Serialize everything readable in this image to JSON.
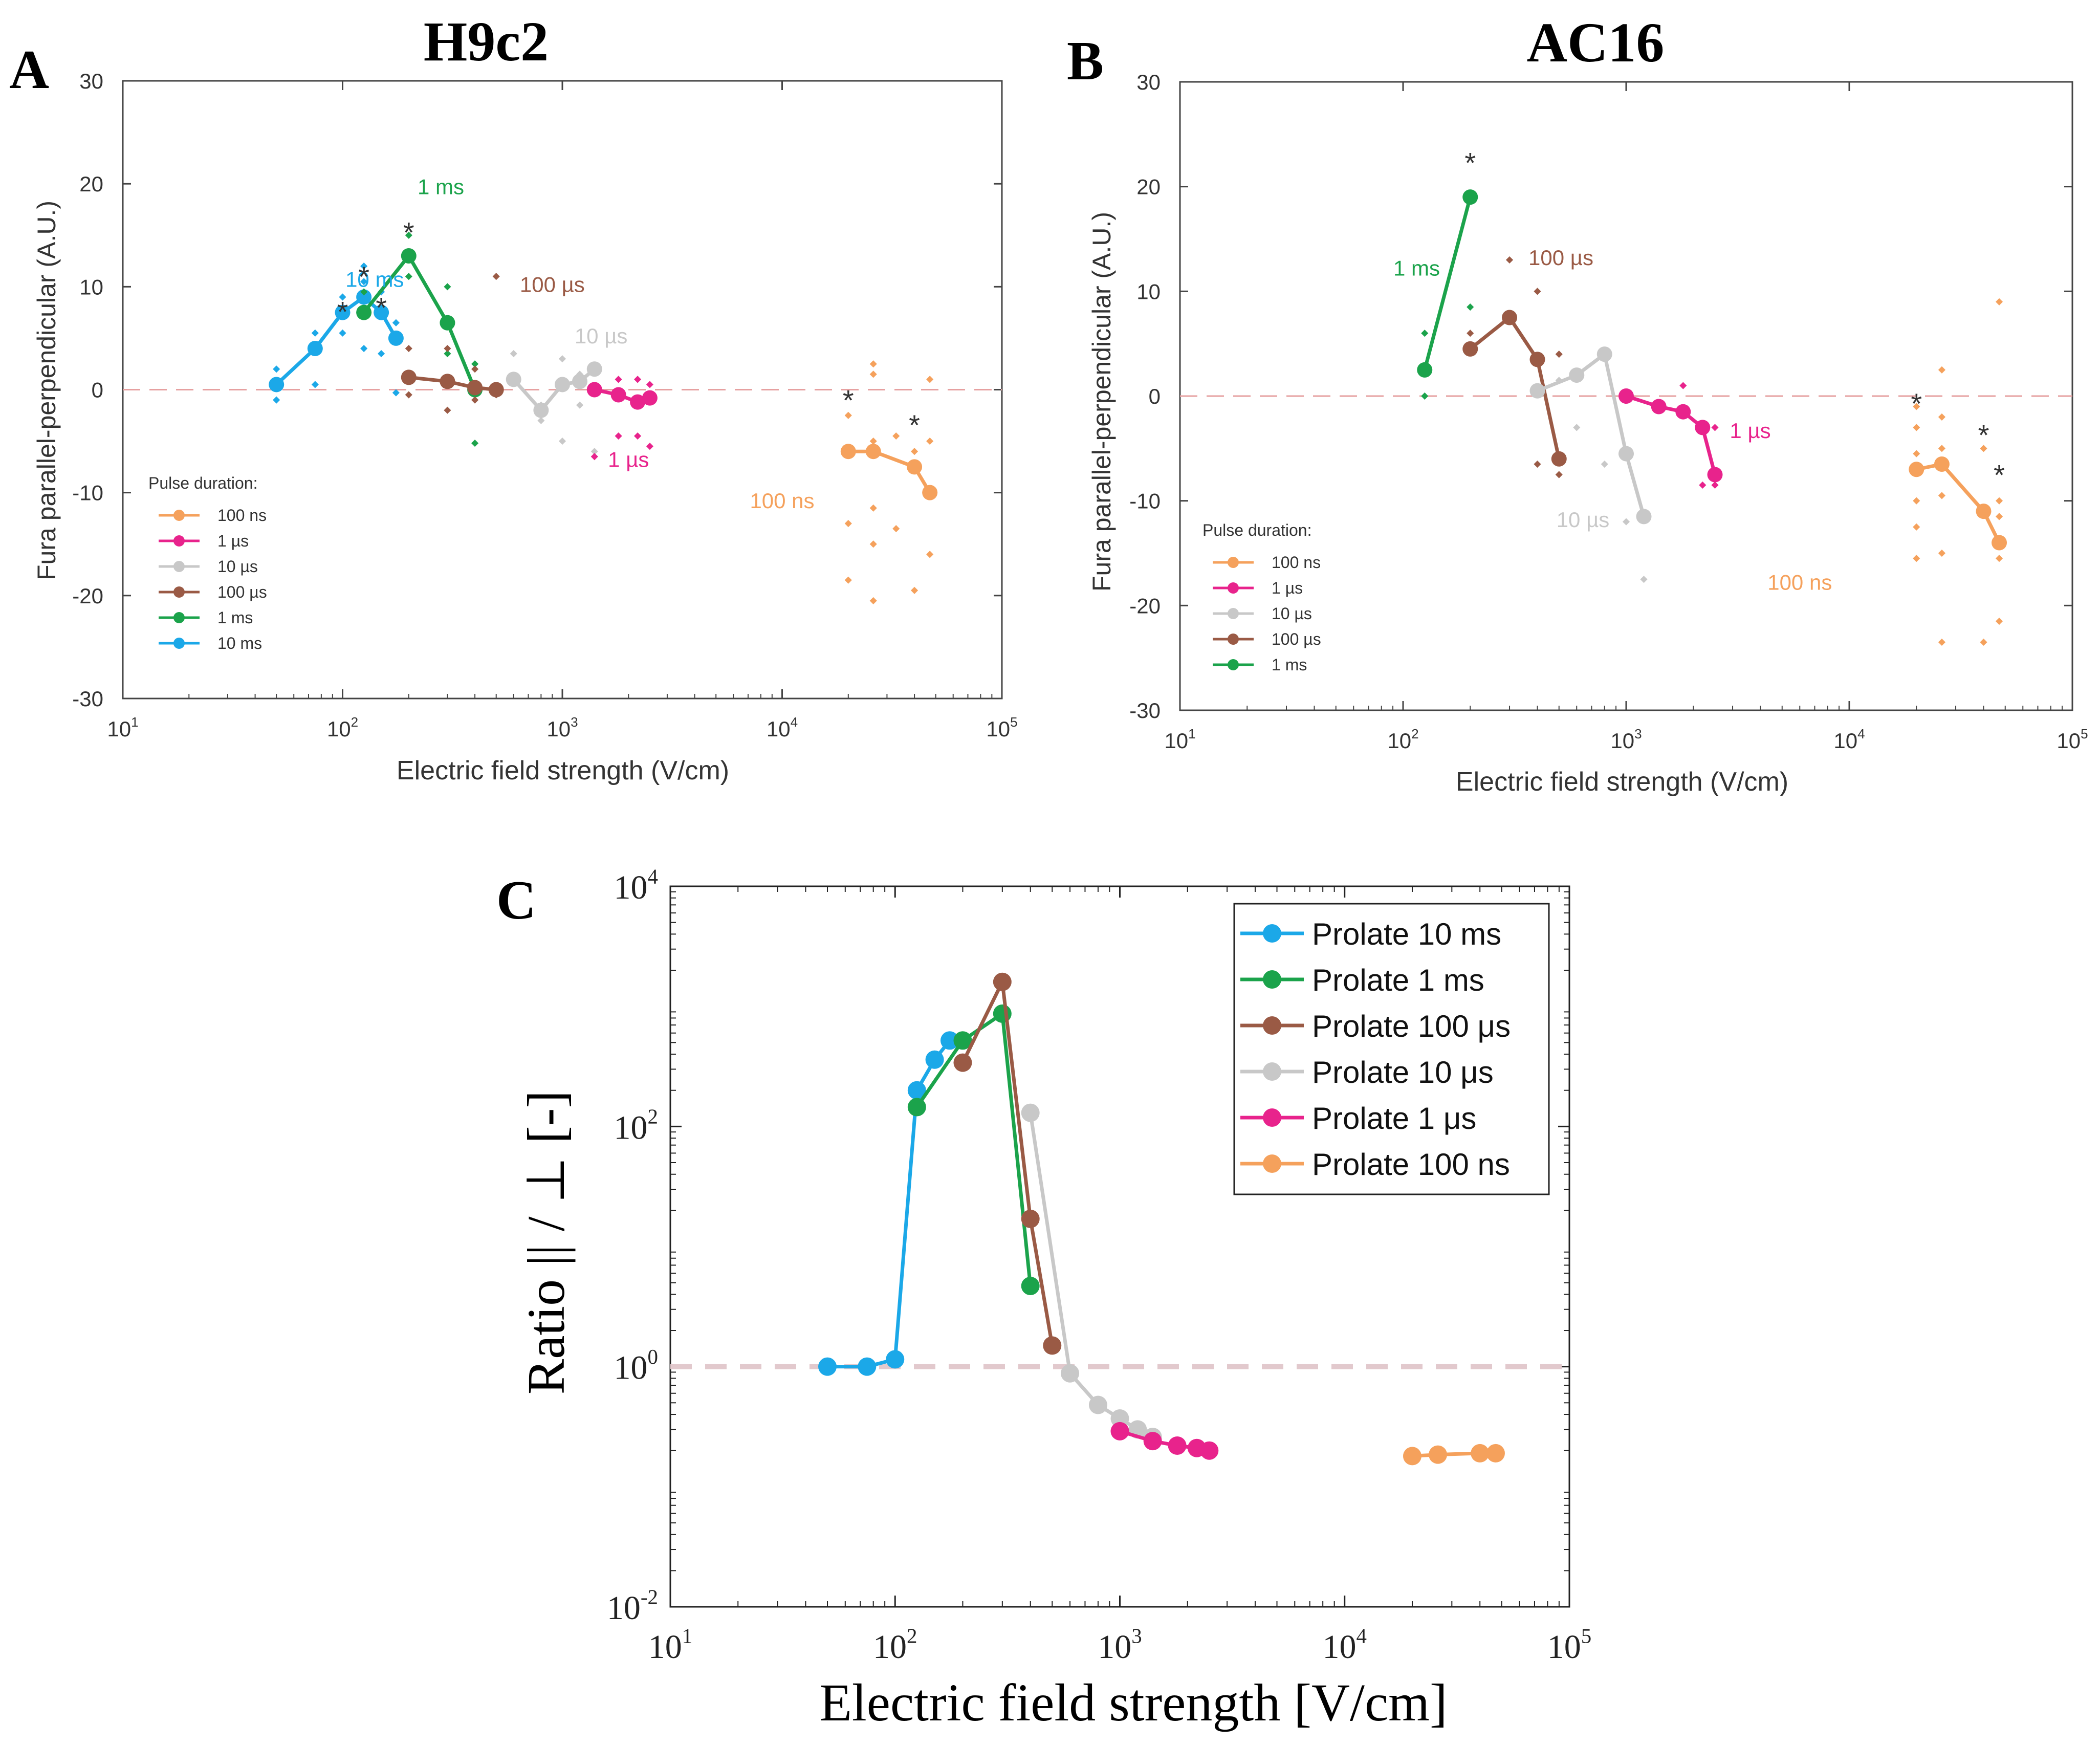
{
  "colors": {
    "ns100": "#F5A15C",
    "us1": "#E8238C",
    "us10": "#C8C8C8",
    "us100": "#9A5A45",
    "ms1": "#1BA34B",
    "ms10": "#1BA8E8",
    "zero_line": "#E6A0A0",
    "zero_line_c": "#E2C9CD",
    "star": "#333333"
  },
  "panels": {
    "A": {
      "label": "A",
      "title": "H9c2",
      "xlabel": "Electric field strength (V/cm)",
      "ylabel": "Fura parallel-perpendicular (A.U.)",
      "legend_title": "Pulse duration:"
    },
    "B": {
      "label": "B",
      "title": "AC16",
      "xlabel": "Electric field strength (V/cm)",
      "ylabel": "Fura parallel-perpendicular (A.U.)",
      "legend_title": "Pulse duration:"
    },
    "C": {
      "label": "C",
      "xlabel": "Electric field strength [V/cm]",
      "ylabel": "Ratio || / ⊥ [-]"
    }
  },
  "chart_data": [
    {
      "id": "A",
      "type": "line",
      "title": "H9c2",
      "xlabel": "Electric field strength (V/cm)",
      "ylabel": "Fura parallel-perpendicular (A.U.)",
      "xscale": "log",
      "xlim": [
        10,
        100000
      ],
      "ylim": [
        -30,
        30
      ],
      "yticks": [
        "30",
        "20",
        "10",
        "0",
        "-10",
        "-20",
        "-30"
      ],
      "xticks": [
        {
          "base": "10",
          "exp": "1"
        },
        {
          "base": "10",
          "exp": "2"
        },
        {
          "base": "10",
          "exp": "3"
        },
        {
          "base": "10",
          "exp": "4"
        },
        {
          "base": "10",
          "exp": "5"
        }
      ],
      "zero_line": true,
      "legend": {
        "title": "Pulse duration:",
        "position": "lower-left",
        "entries": [
          "100 ns",
          "1 µs",
          "10 µs",
          "100 µs",
          "1 ms",
          "10 ms"
        ]
      },
      "series": [
        {
          "name": "10 ms",
          "key": "ms10",
          "x": [
            50,
            75,
            100,
            125,
            150,
            175
          ],
          "y": [
            0.5,
            4,
            7.5,
            9,
            7.5,
            5
          ],
          "scatter": [
            [
              50,
              2
            ],
            [
              50,
              -1
            ],
            [
              75,
              5.5
            ],
            [
              75,
              0.5
            ],
            [
              100,
              9
            ],
            [
              100,
              5.5
            ],
            [
              125,
              12
            ],
            [
              125,
              10.5
            ],
            [
              125,
              4
            ],
            [
              150,
              9.5
            ],
            [
              150,
              3.5
            ],
            [
              175,
              6.5
            ],
            [
              175,
              -0.3
            ]
          ]
        },
        {
          "name": "1 ms",
          "key": "ms1",
          "x": [
            125,
            200,
            300,
            400
          ],
          "y": [
            7.5,
            13,
            6.5,
            0
          ],
          "scatter": [
            [
              125,
              9.5
            ],
            [
              200,
              15
            ],
            [
              200,
              11
            ],
            [
              300,
              10
            ],
            [
              300,
              3.5
            ],
            [
              400,
              2.5
            ],
            [
              400,
              -5.2
            ]
          ]
        },
        {
          "name": "100 µs",
          "key": "us100",
          "x": [
            200,
            300,
            400,
            500
          ],
          "y": [
            1.2,
            0.8,
            0.2,
            0
          ],
          "scatter": [
            [
              200,
              4
            ],
            [
              200,
              -0.5
            ],
            [
              300,
              4
            ],
            [
              300,
              -2
            ],
            [
              400,
              2
            ],
            [
              400,
              -1
            ],
            [
              500,
              11
            ],
            [
              500,
              -0.5
            ]
          ]
        },
        {
          "name": "10 µs",
          "key": "us10",
          "x": [
            600,
            800,
            1000,
            1200,
            1400
          ],
          "y": [
            1,
            -2,
            0.5,
            0.8,
            2
          ],
          "scatter": [
            [
              600,
              3.5
            ],
            [
              800,
              -1.5
            ],
            [
              800,
              -3
            ],
            [
              1000,
              3
            ],
            [
              1000,
              -5
            ],
            [
              1200,
              1.5
            ],
            [
              1200,
              -1.5
            ],
            [
              1400,
              -6
            ]
          ]
        },
        {
          "name": "1 µs",
          "key": "us1",
          "x": [
            1400,
            1800,
            2200,
            2500
          ],
          "y": [
            0,
            -0.5,
            -1.2,
            -0.8
          ],
          "scatter": [
            [
              1400,
              -6.5
            ],
            [
              1800,
              1
            ],
            [
              1800,
              -4.5
            ],
            [
              2200,
              1
            ],
            [
              2200,
              -4.5
            ],
            [
              2500,
              -5.5
            ],
            [
              2500,
              0.5
            ]
          ]
        },
        {
          "name": "100 ns",
          "key": "ns100",
          "x": [
            20000,
            26000,
            40000,
            47000
          ],
          "y": [
            -6,
            -6,
            -7.5,
            -10
          ],
          "scatter": [
            [
              20000,
              -2.5
            ],
            [
              20000,
              -13
            ],
            [
              20000,
              -18.5
            ],
            [
              26000,
              2.5
            ],
            [
              26000,
              1.5
            ],
            [
              26000,
              -5
            ],
            [
              26000,
              -11.5
            ],
            [
              26000,
              -15
            ],
            [
              26000,
              -20.5
            ],
            [
              33000,
              -4.5
            ],
            [
              33000,
              -13.5
            ],
            [
              40000,
              -6
            ],
            [
              40000,
              -19.5
            ],
            [
              47000,
              1
            ],
            [
              47000,
              -16
            ],
            [
              47000,
              -5
            ]
          ]
        }
      ],
      "annotations": [
        {
          "text": "10 ms",
          "key": "ms10",
          "at": [
            140,
            10
          ]
        },
        {
          "text": "1 ms",
          "key": "ms1",
          "at": [
            280,
            19
          ]
        },
        {
          "text": "100 µs",
          "key": "us100",
          "at": [
            900,
            9.5
          ]
        },
        {
          "text": "10 µs",
          "key": "us10",
          "at": [
            1500,
            4.5
          ]
        },
        {
          "text": "1 µs",
          "key": "us1",
          "at": [
            2000,
            -7.5
          ]
        },
        {
          "text": "100 ns",
          "key": "ns100",
          "at": [
            10000,
            -11.5
          ]
        }
      ],
      "stars": [
        [
          100,
          7.8
        ],
        [
          125,
          11.2
        ],
        [
          150,
          8.2
        ],
        [
          200,
          15.5
        ],
        [
          20000,
          -0.8
        ],
        [
          40000,
          -3.2
        ]
      ]
    },
    {
      "id": "B",
      "type": "line",
      "title": "AC16",
      "xlabel": "Electric field strength (V/cm)",
      "ylabel": "Fura parallel-perpendicular (A.U.)",
      "xscale": "log",
      "xlim": [
        10,
        100000
      ],
      "ylim": [
        -30,
        30
      ],
      "yticks": [
        "30",
        "20",
        "10",
        "0",
        "-10",
        "-20",
        "-30"
      ],
      "xticks": [
        {
          "base": "10",
          "exp": "1"
        },
        {
          "base": "10",
          "exp": "2"
        },
        {
          "base": "10",
          "exp": "3"
        },
        {
          "base": "10",
          "exp": "4"
        },
        {
          "base": "10",
          "exp": "5"
        }
      ],
      "zero_line": true,
      "legend": {
        "title": "Pulse duration:",
        "position": "lower-left",
        "entries": [
          "100 ns",
          "1 µs",
          "10 µs",
          "100 µs",
          "1 ms"
        ]
      },
      "series": [
        {
          "name": "1 ms",
          "key": "ms1",
          "x": [
            125,
            200
          ],
          "y": [
            2.5,
            19
          ],
          "scatter": [
            [
              125,
              6
            ],
            [
              125,
              0
            ],
            [
              200,
              8.5
            ]
          ]
        },
        {
          "name": "100 µs",
          "key": "us100",
          "x": [
            200,
            300,
            400,
            500
          ],
          "y": [
            4.5,
            7.5,
            3.5,
            -6
          ],
          "scatter": [
            [
              200,
              6
            ],
            [
              300,
              13
            ],
            [
              400,
              10
            ],
            [
              400,
              -6.5
            ],
            [
              500,
              4
            ],
            [
              500,
              -7.5
            ]
          ]
        },
        {
          "name": "10 µs",
          "key": "us10",
          "x": [
            400,
            600,
            800,
            1000,
            1200
          ],
          "y": [
            0.5,
            2,
            4,
            -5.5,
            -11.5
          ],
          "scatter": [
            [
              500,
              1.5
            ],
            [
              600,
              -3
            ],
            [
              800,
              -6.5
            ],
            [
              1000,
              -12
            ],
            [
              1200,
              -17.5
            ]
          ]
        },
        {
          "name": "1 µs",
          "key": "us1",
          "x": [
            1000,
            1400,
            1800,
            2200,
            2500
          ],
          "y": [
            0,
            -1,
            -1.5,
            -3,
            -7.5
          ],
          "scatter": [
            [
              1800,
              1
            ],
            [
              2200,
              -8.5
            ],
            [
              2500,
              -3
            ],
            [
              2500,
              -8.5
            ]
          ]
        },
        {
          "name": "100 ns",
          "key": "ns100",
          "x": [
            20000,
            26000,
            40000,
            47000
          ],
          "y": [
            -7,
            -6.5,
            -11,
            -14
          ],
          "scatter": [
            [
              20000,
              -1
            ],
            [
              20000,
              -3
            ],
            [
              20000,
              -5.5
            ],
            [
              20000,
              -10
            ],
            [
              20000,
              -12.5
            ],
            [
              20000,
              -15.5
            ],
            [
              26000,
              2.5
            ],
            [
              26000,
              -2
            ],
            [
              26000,
              -5
            ],
            [
              26000,
              -9.5
            ],
            [
              26000,
              -15
            ],
            [
              26000,
              -23.5
            ],
            [
              40000,
              -5
            ],
            [
              40000,
              -23.5
            ],
            [
              47000,
              9
            ],
            [
              47000,
              -10
            ],
            [
              47000,
              -11.5
            ],
            [
              47000,
              -15.5
            ],
            [
              47000,
              -21.5
            ]
          ]
        }
      ],
      "annotations": [
        {
          "text": "1 ms",
          "key": "ms1",
          "at": [
            115,
            11.5
          ]
        },
        {
          "text": "100 µs",
          "key": "us100",
          "at": [
            510,
            12.5
          ]
        },
        {
          "text": "10 µs",
          "key": "us10",
          "at": [
            640,
            -12.5
          ]
        },
        {
          "text": "1 µs",
          "key": "us1",
          "at": [
            3600,
            -4
          ]
        },
        {
          "text": "100 ns",
          "key": "ns100",
          "at": [
            6000,
            -18.5
          ]
        }
      ],
      "stars": [
        [
          200,
          22.5
        ],
        [
          20000,
          -0.5
        ],
        [
          40000,
          -3.5
        ],
        [
          47000,
          -7.3
        ]
      ]
    },
    {
      "id": "C",
      "type": "line",
      "xlabel": "Electric field strength [V/cm]",
      "ylabel": "Ratio || / ⊥ [-]",
      "xscale": "log",
      "yscale": "log",
      "xlim": [
        10,
        100000
      ],
      "ylim": [
        0.01,
        10000
      ],
      "xticks": [
        {
          "base": "10",
          "exp": "1"
        },
        {
          "base": "10",
          "exp": "2"
        },
        {
          "base": "10",
          "exp": "3"
        },
        {
          "base": "10",
          "exp": "4"
        },
        {
          "base": "10",
          "exp": "5"
        }
      ],
      "yticks": [
        {
          "base": "10",
          "exp": "4"
        },
        {
          "base": "10",
          "exp": "2"
        },
        {
          "base": "10",
          "exp": "0"
        },
        {
          "base": "10",
          "exp": "-2"
        }
      ],
      "reference_line": 1,
      "legend": {
        "position": "top-right",
        "entries": [
          "Prolate 10 ms",
          "Prolate 1 ms",
          "Prolate 100 μs",
          "Prolate 10 μs",
          "Prolate 1 μs",
          "Prolate 100 ns"
        ]
      },
      "series": [
        {
          "name": "Prolate 10 ms",
          "key": "ms10",
          "x": [
            50,
            75,
            100,
            125,
            150,
            175
          ],
          "y": [
            1.0,
            1.0,
            1.15,
            200,
            360,
            520
          ]
        },
        {
          "name": "Prolate 1 ms",
          "key": "ms1",
          "x": [
            125,
            200,
            300,
            400
          ],
          "y": [
            145,
            520,
            870,
            4.7
          ]
        },
        {
          "name": "Prolate 100 μs",
          "key": "us100",
          "x": [
            200,
            300,
            400,
            500
          ],
          "y": [
            340,
            1600,
            17,
            1.5
          ]
        },
        {
          "name": "Prolate 10 μs",
          "key": "us10",
          "x": [
            400,
            600,
            800,
            1000,
            1200,
            1400
          ],
          "y": [
            130,
            0.88,
            0.48,
            0.37,
            0.3,
            0.26
          ]
        },
        {
          "name": "Prolate 1 μs",
          "key": "us1",
          "x": [
            1000,
            1400,
            1800,
            2200,
            2500
          ],
          "y": [
            0.29,
            0.24,
            0.22,
            0.21,
            0.2
          ]
        },
        {
          "name": "Prolate 100 ns",
          "key": "ns100",
          "x": [
            20000,
            26000,
            40000,
            47000
          ],
          "y": [
            0.18,
            0.185,
            0.19,
            0.19
          ]
        }
      ]
    }
  ]
}
